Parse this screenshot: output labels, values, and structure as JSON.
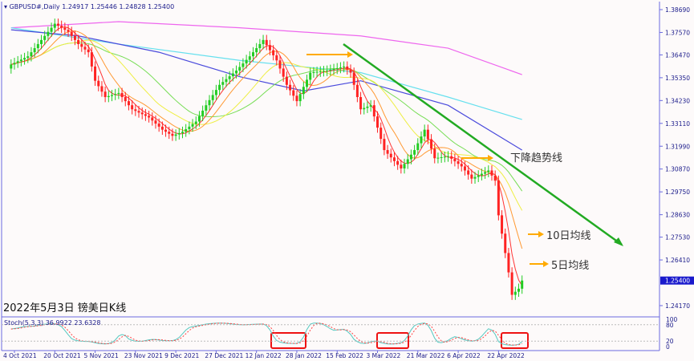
{
  "header": {
    "symbol": "GBPUSD#,Daily",
    "ohlc": "1.24917 1.25446 1.24828 1.25400"
  },
  "caption": "2022年5月3日 镑美日K线",
  "annotations": {
    "trend": "下降趋势线",
    "ma10": "10日均线",
    "ma5": "5日均线"
  },
  "stoch": {
    "label": "Stoch(5,3,3) 36.9922 23.6328",
    "levels": [
      "100",
      "80",
      "20",
      "0"
    ]
  },
  "colors": {
    "bull": "#22cc22",
    "bear": "#ff2222",
    "ma5": "#ff3333",
    "ma10": "#ff9933",
    "ma20": "#eeee44",
    "ma30": "#77dd55",
    "blue": "#4a4adc",
    "cyan": "#66e0ee",
    "magenta": "#ee66ee",
    "trend": "#22aa22",
    "arrow": "#ffaa00",
    "box": "#ee1111",
    "k": "#55c8c0",
    "d": "#ff4444"
  },
  "chart_data": {
    "type": "candlestick",
    "ylim": [
      1.236,
      1.392
    ],
    "yticks": [
      "1.38690",
      "1.37570",
      "1.36470",
      "1.35350",
      "1.34230",
      "1.33110",
      "1.31990",
      "1.30870",
      "1.29750",
      "1.28630",
      "1.27530",
      "1.26410",
      "1.24170"
    ],
    "current_price": "1.25400",
    "xticks": [
      "4 Oct 2021",
      "20 Oct 2021",
      "5 Nov 2021",
      "23 Nov 2021",
      "9 Dec 2021",
      "27 Dec 2021",
      "12 Jan 2022",
      "28 Jan 2022",
      "15 Feb 2022",
      "3 Mar 2022",
      "21 Mar 2022",
      "6 Apr 2022",
      "22 Apr 2022"
    ],
    "close_anchors": [
      [
        "2021-10-01",
        1.36
      ],
      [
        "2021-10-08",
        1.364
      ],
      [
        "2021-10-15",
        1.374
      ],
      [
        "2021-10-20",
        1.38
      ],
      [
        "2021-10-26",
        1.376
      ],
      [
        "2021-10-29",
        1.37
      ],
      [
        "2021-11-03",
        1.366
      ],
      [
        "2021-11-05",
        1.352
      ],
      [
        "2021-11-10",
        1.344
      ],
      [
        "2021-11-16",
        1.346
      ],
      [
        "2021-11-22",
        1.338
      ],
      [
        "2021-11-29",
        1.334
      ],
      [
        "2021-12-03",
        1.328
      ],
      [
        "2021-12-08",
        1.325
      ],
      [
        "2021-12-13",
        1.327
      ],
      [
        "2021-12-17",
        1.332
      ],
      [
        "2021-12-22",
        1.34
      ],
      [
        "2021-12-28",
        1.35
      ],
      [
        "2022-01-04",
        1.357
      ],
      [
        "2022-01-10",
        1.364
      ],
      [
        "2022-01-14",
        1.372
      ],
      [
        "2022-01-20",
        1.362
      ],
      [
        "2022-01-25",
        1.35
      ],
      [
        "2022-01-28",
        1.342
      ],
      [
        "2022-02-03",
        1.356
      ],
      [
        "2022-02-10",
        1.357
      ],
      [
        "2022-02-17",
        1.359
      ],
      [
        "2022-02-21",
        1.356
      ],
      [
        "2022-02-24",
        1.338
      ],
      [
        "2022-03-01",
        1.34
      ],
      [
        "2022-03-07",
        1.318
      ],
      [
        "2022-03-14",
        1.309
      ],
      [
        "2022-03-18",
        1.318
      ],
      [
        "2022-03-23",
        1.328
      ],
      [
        "2022-03-28",
        1.314
      ],
      [
        "2022-04-01",
        1.315
      ],
      [
        "2022-04-07",
        1.31
      ],
      [
        "2022-04-12",
        1.304
      ],
      [
        "2022-04-19",
        1.308
      ],
      [
        "2022-04-21",
        1.303
      ],
      [
        "2022-04-22",
        1.286
      ],
      [
        "2022-04-25",
        1.277
      ],
      [
        "2022-04-27",
        1.258
      ],
      [
        "2022-04-28",
        1.247
      ],
      [
        "2022-05-02",
        1.25
      ],
      [
        "2022-05-03",
        1.254
      ]
    ],
    "long_ma": [
      {
        "color": "magenta",
        "points": [
          [
            "2021-10-01",
            1.378
          ],
          [
            "2021-11-16",
            1.381
          ],
          [
            "2022-01-05",
            1.378
          ],
          [
            "2022-02-24",
            1.374
          ],
          [
            "2022-04-01",
            1.368
          ],
          [
            "2022-05-03",
            1.355
          ]
        ]
      },
      {
        "color": "cyan",
        "points": [
          [
            "2021-10-01",
            1.378
          ],
          [
            "2021-11-16",
            1.37
          ],
          [
            "2022-01-05",
            1.362
          ],
          [
            "2022-02-24",
            1.356
          ],
          [
            "2022-04-01",
            1.344
          ],
          [
            "2022-05-03",
            1.333
          ]
        ]
      },
      {
        "color": "blue",
        "points": [
          [
            "2021-10-01",
            1.377
          ],
          [
            "2021-10-29",
            1.374
          ],
          [
            "2021-12-02",
            1.366
          ],
          [
            "2022-01-05",
            1.354
          ],
          [
            "2022-02-01",
            1.347
          ],
          [
            "2022-02-24",
            1.352
          ],
          [
            "2022-04-01",
            1.34
          ],
          [
            "2022-05-03",
            1.318
          ]
        ]
      }
    ]
  }
}
